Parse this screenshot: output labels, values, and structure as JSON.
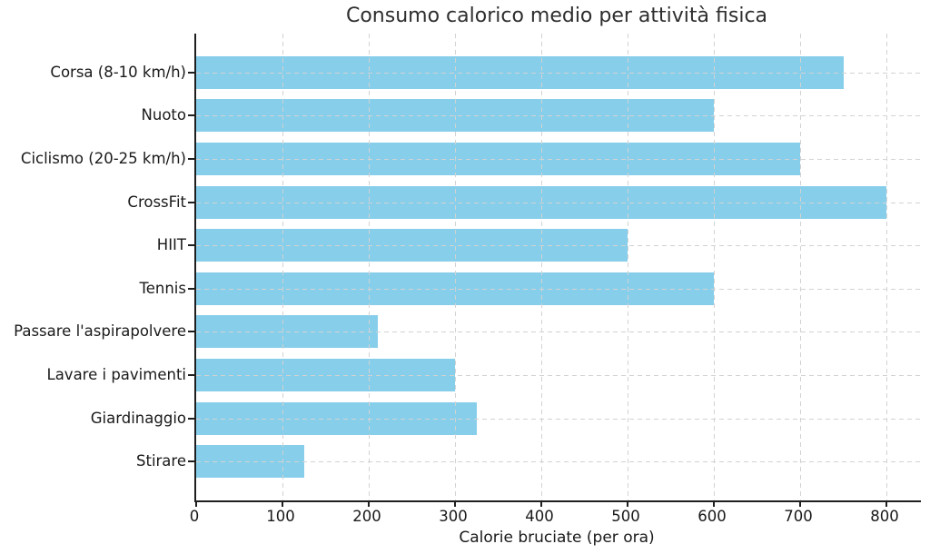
{
  "chart_data": {
    "type": "bar",
    "orientation": "horizontal",
    "title": "Consumo calorico medio per attività fisica",
    "xlabel": "Calorie bruciate (per ora)",
    "ylabel": "",
    "categories": [
      "Corsa (8-10 km/h)",
      "Nuoto",
      "Ciclismo (20-25 km/h)",
      "CrossFit",
      "HIIT",
      "Tennis",
      "Passare l'aspirapolvere",
      "Lavare i pavimenti",
      "Giardinaggio",
      "Stirare"
    ],
    "values": [
      750,
      600,
      700,
      800,
      500,
      600,
      210,
      300,
      325,
      125
    ],
    "xticks": [
      0,
      100,
      200,
      300,
      400,
      500,
      600,
      700,
      800
    ],
    "xlim": [
      0,
      840
    ],
    "bar_color": "#87CEEB",
    "grid": "dashed",
    "grid_color": "#d2d2d2",
    "spine_color": "#1f1f1f",
    "legend_position": "none"
  }
}
